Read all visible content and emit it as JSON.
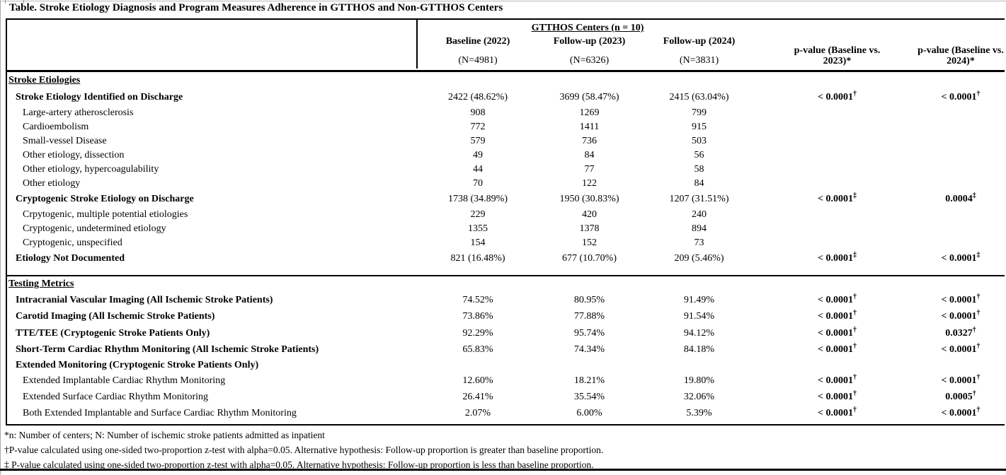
{
  "title": "Table. Stroke Etiology Diagnosis and Program Measures Adherence in GTTHOS and Non-GTTHOS Centers",
  "table": {
    "group_header": "GTTHOS Centers (n = 10)",
    "columns": [
      {
        "label": "Baseline (2022)",
        "n": "(N=4981)"
      },
      {
        "label": "Follow-up (2023)",
        "n": "(N=6326)"
      },
      {
        "label": "Follow-up (2024)",
        "n": "(N=3831)"
      },
      {
        "label_line1": "p-value (Baseline vs.",
        "label_line2": "2023)*"
      },
      {
        "label_line1": "p-value (Baseline vs.",
        "label_line2": "2024)*"
      }
    ],
    "sections": [
      {
        "heading": "Stroke Etiologies",
        "rows": [
          {
            "label": "Stroke Etiology Identified on Discharge",
            "bold": true,
            "indent": 1,
            "values": [
              "2422 (48.62%)",
              "3699 (58.47%)",
              "2415 (63.04%)"
            ],
            "p_vs_2023": {
              "text": "< 0.0001",
              "mark": "†"
            },
            "p_vs_2024": {
              "text": "< 0.0001",
              "mark": "†"
            }
          },
          {
            "label": "Large-artery atherosclerosis",
            "bold": false,
            "indent": 2,
            "values": [
              "908",
              "1269",
              "799"
            ],
            "p_vs_2023": null,
            "p_vs_2024": null
          },
          {
            "label": "Cardioembolism",
            "bold": false,
            "indent": 2,
            "values": [
              "772",
              "1411",
              "915"
            ],
            "p_vs_2023": null,
            "p_vs_2024": null
          },
          {
            "label": "Small-vessel Disease",
            "bold": false,
            "indent": 2,
            "values": [
              "579",
              "736",
              "503"
            ],
            "p_vs_2023": null,
            "p_vs_2024": null
          },
          {
            "label": "Other etiology, dissection",
            "bold": false,
            "indent": 2,
            "values": [
              "49",
              "84",
              "56"
            ],
            "p_vs_2023": null,
            "p_vs_2024": null
          },
          {
            "label": "Other etiology, hypercoagulability",
            "bold": false,
            "indent": 2,
            "values": [
              "44",
              "77",
              "58"
            ],
            "p_vs_2023": null,
            "p_vs_2024": null
          },
          {
            "label": "Other etiology",
            "bold": false,
            "indent": 2,
            "values": [
              "70",
              "122",
              "84"
            ],
            "p_vs_2023": null,
            "p_vs_2024": null
          },
          {
            "label": "Cryptogenic Stroke Etiology on Discharge",
            "bold": true,
            "indent": 1,
            "values": [
              "1738 (34.89%)",
              "1950 (30.83%)",
              "1207 (31.51%)"
            ],
            "p_vs_2023": {
              "text": "< 0.0001",
              "mark": "‡"
            },
            "p_vs_2024": {
              "text": "0.0004",
              "mark": "‡"
            }
          },
          {
            "label": "Crpytogenic, multiple potential etiologies",
            "bold": false,
            "indent": 2,
            "values": [
              "229",
              "420",
              "240"
            ],
            "p_vs_2023": null,
            "p_vs_2024": null
          },
          {
            "label": "Cryptogenic, undetermined etiology",
            "bold": false,
            "indent": 2,
            "values": [
              "1355",
              "1378",
              "894"
            ],
            "p_vs_2023": null,
            "p_vs_2024": null
          },
          {
            "label": "Cryptogenic, unspecified",
            "bold": false,
            "indent": 2,
            "values": [
              "154",
              "152",
              "73"
            ],
            "p_vs_2023": null,
            "p_vs_2024": null
          },
          {
            "label": "Etiology Not Documented",
            "bold": true,
            "indent": 1,
            "values": [
              "821 (16.48%)",
              "677 (10.70%)",
              "209 (5.46%)"
            ],
            "p_vs_2023": {
              "text": "< 0.0001",
              "mark": "‡"
            },
            "p_vs_2024": {
              "text": "< 0.0001",
              "mark": "‡"
            }
          }
        ]
      },
      {
        "heading": "Testing Metrics",
        "rows": [
          {
            "label": "Intracranial Vascular Imaging (All Ischemic Stroke Patients)",
            "bold": true,
            "indent": 1,
            "values": [
              "74.52%",
              "80.95%",
              "91.49%"
            ],
            "p_vs_2023": {
              "text": "< 0.0001",
              "mark": "†"
            },
            "p_vs_2024": {
              "text": "< 0.0001",
              "mark": "†"
            }
          },
          {
            "label": "Carotid Imaging (All Ischemic Stroke Patients)",
            "bold": true,
            "indent": 1,
            "values": [
              "73.86%",
              "77.88%",
              "91.54%"
            ],
            "p_vs_2023": {
              "text": "< 0.0001",
              "mark": "†"
            },
            "p_vs_2024": {
              "text": "< 0.0001",
              "mark": "†"
            }
          },
          {
            "label": "TTE/TEE (Cryptogenic Stroke Patients Only)",
            "bold": true,
            "indent": 1,
            "values": [
              "92.29%",
              "95.74%",
              "94.12%"
            ],
            "p_vs_2023": {
              "text": "< 0.0001",
              "mark": "†"
            },
            "p_vs_2024": {
              "text": "0.0327",
              "mark": "†"
            }
          },
          {
            "label": "Short-Term Cardiac Rhythm Monitoring (All Ischemic Stroke Patients)",
            "bold": true,
            "indent": 1,
            "values": [
              "65.83%",
              "74.34%",
              "84.18%"
            ],
            "p_vs_2023": {
              "text": "< 0.0001",
              "mark": "†"
            },
            "p_vs_2024": {
              "text": "< 0.0001",
              "mark": "†"
            }
          },
          {
            "label": "Extended Monitoring (Cryptogenic Stroke Patients Only)",
            "bold": true,
            "indent": 1,
            "values": [
              "",
              "",
              ""
            ],
            "p_vs_2023": null,
            "p_vs_2024": null
          },
          {
            "label": "Extended Implantable Cardiac Rhythm Monitoring",
            "bold": false,
            "indent": 2,
            "values": [
              "12.60%",
              "18.21%",
              "19.80%"
            ],
            "p_vs_2023": {
              "text": "< 0.0001",
              "mark": "†"
            },
            "p_vs_2024": {
              "text": "< 0.0001",
              "mark": "†"
            }
          },
          {
            "label": "Extended Surface Cardiac Rhythm Monitoring",
            "bold": false,
            "indent": 2,
            "values": [
              "26.41%",
              "35.54%",
              "32.06%"
            ],
            "p_vs_2023": {
              "text": "< 0.0001",
              "mark": "†"
            },
            "p_vs_2024": {
              "text": "0.0005",
              "mark": "†"
            }
          },
          {
            "label": "Both Extended Implantable and Surface Cardiac Rhythm Monitoring",
            "bold": false,
            "indent": 2,
            "values": [
              "2.07%",
              "6.00%",
              "5.39%"
            ],
            "p_vs_2023": {
              "text": "< 0.0001",
              "mark": "†"
            },
            "p_vs_2024": {
              "text": "< 0.0001",
              "mark": "†"
            }
          }
        ]
      }
    ]
  },
  "footnotes": [
    "*n: Number of centers; N: Number of ischemic stroke patients admitted as inpatient",
    "†P-value calculated using one-sided two-proportion z-test with alpha=0.05. Alternative hypothesis: Follow-up proportion is greater than baseline proportion.",
    "‡ P-value calculated using one-sided two-proportion z-test with alpha=0.05. Alternative hypothesis: Follow-up proportion is less than baseline proportion."
  ]
}
